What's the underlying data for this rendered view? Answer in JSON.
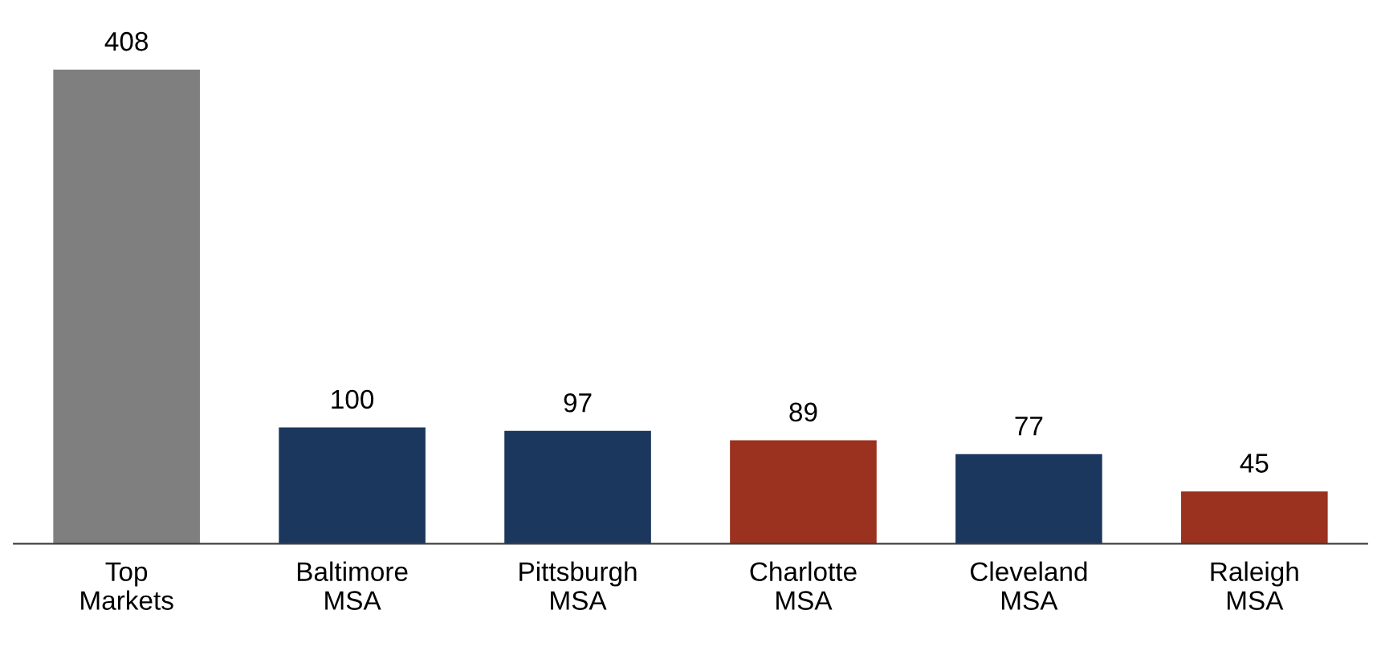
{
  "chart_data": {
    "type": "bar",
    "categories": [
      "Top\nMarkets",
      "Baltimore\nMSA",
      "Pittsburgh\nMSA",
      "Charlotte\nMSA",
      "Cleveland\nMSA",
      "Raleigh\nMSA"
    ],
    "values": [
      408,
      100,
      97,
      89,
      77,
      45
    ],
    "colors": [
      "#7f7f7f",
      "#1b375e",
      "#1b375e",
      "#9b311f",
      "#1b375e",
      "#9b311f"
    ],
    "data_labels": true,
    "grid": false,
    "legend": false
  }
}
